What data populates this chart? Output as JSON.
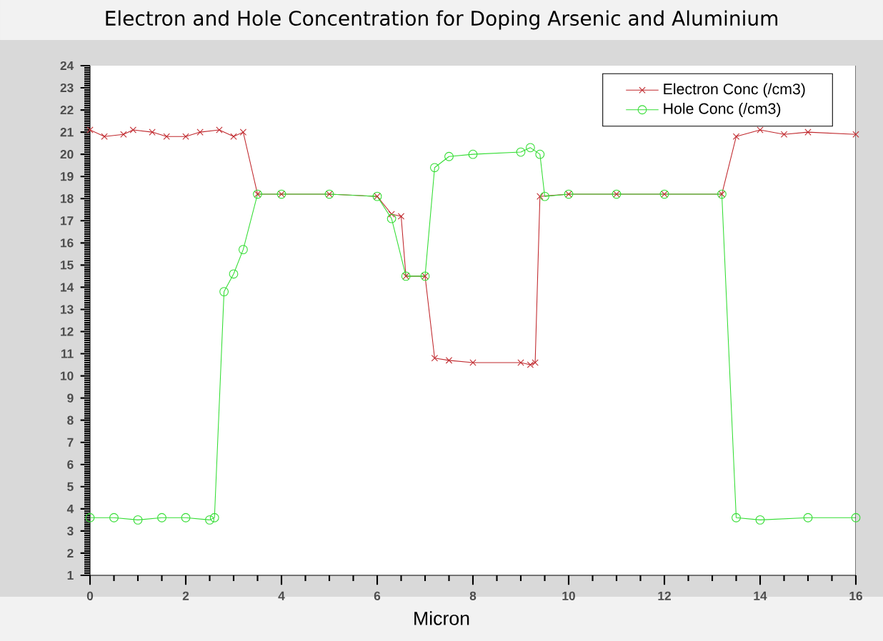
{
  "chart_data": {
    "type": "line",
    "title": "Electron and Hole Concentration for Doping Arsenic and Aluminium",
    "xlabel": "Micron",
    "xlim": [
      0,
      16
    ],
    "ylim": [
      1,
      24
    ],
    "xticks": [
      0,
      2,
      4,
      6,
      8,
      10,
      12,
      14,
      16
    ],
    "yticks": [
      1,
      2,
      3,
      4,
      5,
      6,
      7,
      8,
      9,
      10,
      11,
      12,
      13,
      14,
      15,
      16,
      17,
      18,
      19,
      20,
      21,
      22,
      23,
      24
    ],
    "grid": false,
    "legend": "top right",
    "line_style": "solid",
    "series": [
      {
        "name": "Electron Conc (/cm3)",
        "color": "#c0282d",
        "marker": "cross",
        "x": [
          0,
          0.3,
          0.7,
          0.9,
          1.3,
          1.6,
          2.0,
          2.3,
          2.7,
          3.0,
          3.2,
          3.5,
          4,
          5,
          6,
          6.3,
          6.5,
          6.6,
          7.0,
          7.2,
          7.5,
          8,
          9,
          9.2,
          9.3,
          9.4,
          10,
          11,
          12,
          13.2,
          13.5,
          14,
          14.5,
          15,
          16
        ],
        "values": [
          21.1,
          20.8,
          20.9,
          21.1,
          21.0,
          20.8,
          20.8,
          21.0,
          21.1,
          20.8,
          21.0,
          18.2,
          18.2,
          18.2,
          18.1,
          17.3,
          17.2,
          14.5,
          14.5,
          10.8,
          10.7,
          10.6,
          10.6,
          10.5,
          10.6,
          18.1,
          18.2,
          18.2,
          18.2,
          18.2,
          20.8,
          21.1,
          20.9,
          21.0,
          20.9
        ]
      },
      {
        "name": "Hole Conc (/cm3)",
        "color": "#33dd33",
        "marker": "circle",
        "x": [
          0,
          0.5,
          1,
          1.5,
          2,
          2.5,
          2.6,
          2.8,
          3.0,
          3.2,
          3.5,
          4,
          5,
          6,
          6.3,
          6.6,
          7.0,
          7.2,
          7.5,
          8,
          9,
          9.2,
          9.4,
          9.5,
          10,
          11,
          12,
          13.2,
          13.5,
          14,
          15,
          16
        ],
        "values": [
          3.6,
          3.6,
          3.5,
          3.6,
          3.6,
          3.5,
          3.6,
          13.8,
          14.6,
          15.7,
          18.2,
          18.2,
          18.2,
          18.1,
          17.1,
          14.5,
          14.5,
          19.4,
          19.9,
          20.0,
          20.1,
          20.3,
          20.0,
          18.1,
          18.2,
          18.2,
          18.2,
          18.2,
          3.6,
          3.5,
          3.6,
          3.6
        ]
      }
    ]
  }
}
